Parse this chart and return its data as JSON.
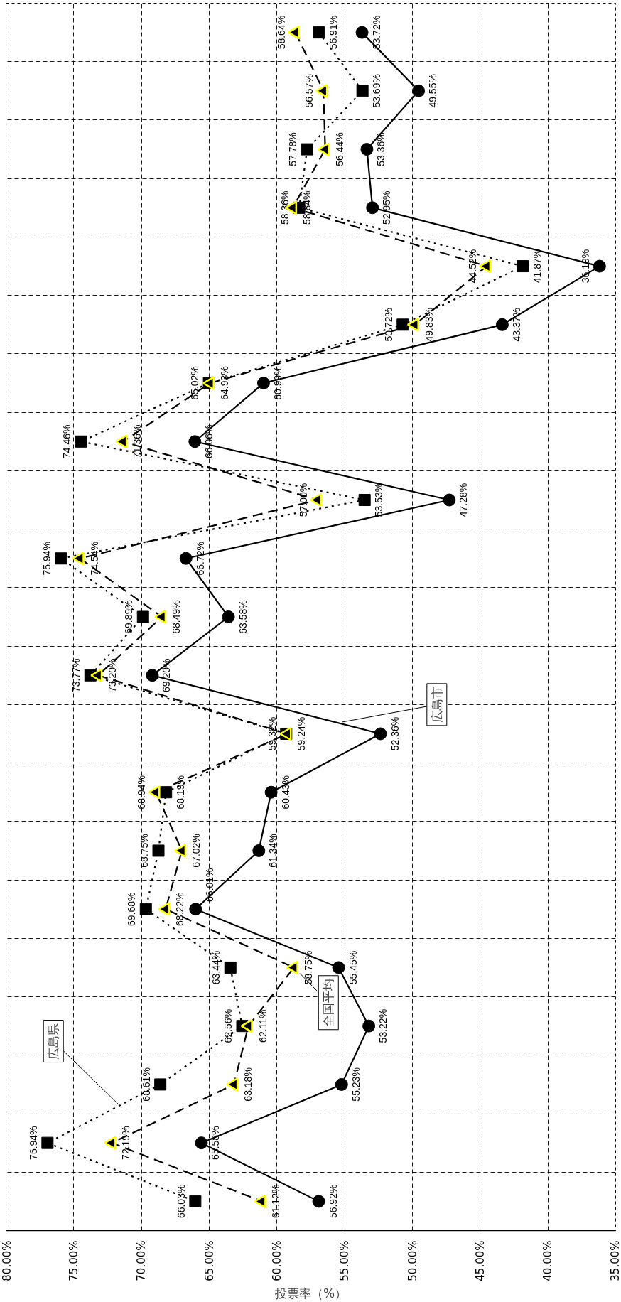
{
  "chart_data": {
    "type": "line",
    "orientation": "horizontal",
    "xlabel": "投票率（%）",
    "categories": [
      null,
      null,
      null,
      null,
      null,
      null,
      null,
      null,
      null,
      null,
      null,
      null,
      null,
      null,
      null,
      null,
      null,
      null,
      null,
      null,
      null
    ],
    "series": [
      {
        "name": "広島市",
        "color": "#000000",
        "marker": "circle",
        "line_style": "solid",
        "values": [
          53.72,
          49.55,
          53.36,
          52.95,
          36.19,
          43.37,
          60.99,
          66.06,
          47.28,
          66.72,
          63.58,
          69.2,
          52.36,
          60.43,
          61.34,
          66.01,
          55.45,
          53.22,
          55.23,
          65.58,
          56.92
        ],
        "value_labels": [
          "53.72%",
          "49.55%",
          "53.36%",
          "52.95%",
          "36.19%",
          "43.37%",
          "60.99%",
          "66.06%",
          "47.28%",
          "66.72%",
          "63.58%",
          "69.20%",
          "52.36%",
          "60.43%",
          "61.34%",
          "66.01%",
          "55.45%",
          "53.22%",
          "55.23%",
          "65.58%",
          "56.92%"
        ]
      },
      {
        "name": "広島県",
        "color": "#000000",
        "marker": "square",
        "line_style": "dotted",
        "values": [
          56.91,
          53.69,
          57.78,
          58.36,
          41.87,
          50.72,
          65.02,
          74.46,
          53.53,
          75.94,
          69.89,
          73.77,
          59.32,
          68.19,
          68.75,
          69.68,
          63.44,
          62.56,
          68.61,
          76.94,
          66.03
        ],
        "value_labels": [
          "56.91%",
          "53.69%",
          "57.78%",
          "58.36%",
          "41.87%",
          "50.72%",
          "65.02%",
          "74.46%",
          "53.53%",
          "75.94%",
          "69.89%",
          "73.77%",
          "59.32%",
          "68.19%",
          "68.75%",
          "69.68%",
          "63.44%",
          "62.56%",
          "68.61%",
          "76.94%",
          "66.03%"
        ]
      },
      {
        "name": "全国平均",
        "color": "#ffff00",
        "marker": "triangle",
        "line_style": "dashed",
        "values": [
          58.64,
          56.57,
          56.44,
          58.84,
          44.52,
          49.83,
          64.93,
          71.36,
          57.0,
          74.54,
          68.49,
          73.2,
          59.24,
          68.94,
          67.02,
          68.22,
          58.75,
          62.11,
          63.18,
          72.19,
          61.12
        ],
        "value_labels": [
          "58.64%",
          "56.57%",
          "56.44%",
          "58.84%",
          "44.52%",
          "49.83%",
          "64.93%",
          "71.36%",
          "57.00%",
          "74.54%",
          "68.49%",
          "73.20%",
          "59.24%",
          "68.94%",
          "67.02%",
          "68.22%",
          "58.75%",
          "62.11%",
          "63.18%",
          "72.19%",
          "61.12%"
        ]
      }
    ],
    "xlim": [
      80,
      35
    ],
    "xticks": [
      {
        "value": 80,
        "label": "80.00%"
      },
      {
        "value": 75,
        "label": "75.00%"
      },
      {
        "value": 70,
        "label": "70.00%"
      },
      {
        "value": 65,
        "label": "65.00%"
      },
      {
        "value": 60,
        "label": "60.00%"
      },
      {
        "value": 55,
        "label": "55.00%"
      },
      {
        "value": 50,
        "label": "50.00%"
      },
      {
        "value": 45,
        "label": "45.00%"
      },
      {
        "value": 40,
        "label": "40.00%"
      },
      {
        "value": 35,
        "label": "35.00%"
      }
    ],
    "grid": true,
    "tick_labels": "x"
  }
}
